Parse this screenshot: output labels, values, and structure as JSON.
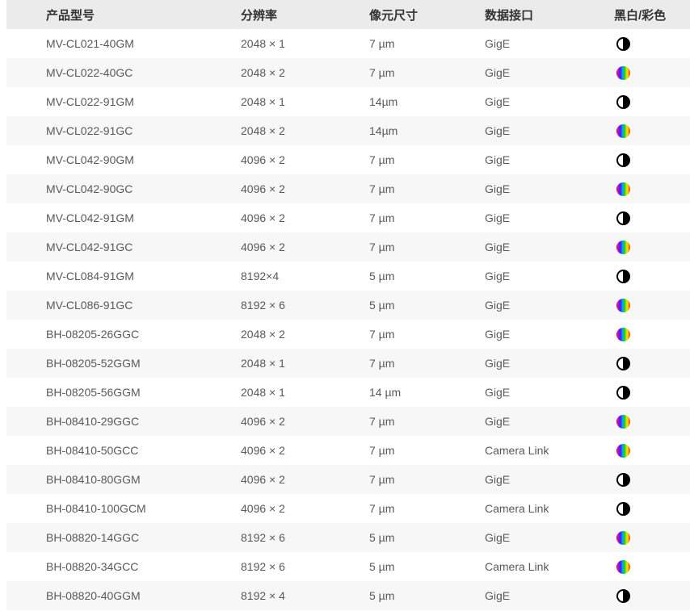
{
  "table": {
    "columns": [
      "产品型号",
      "分辨率",
      "像元尺寸",
      "数据接口",
      "黑白/彩色"
    ],
    "rows": [
      {
        "model": "MV-CL021-40GM",
        "resolution": "2048 × 1",
        "pixel_size": "7 µm",
        "interface": "GigE",
        "type": "mono"
      },
      {
        "model": "MV-CL022-40GC",
        "resolution": "2048 × 2",
        "pixel_size": "7 µm",
        "interface": "GigE",
        "type": "color"
      },
      {
        "model": "MV-CL022-91GM",
        "resolution": "2048 × 1",
        "pixel_size": "14µm",
        "interface": "GigE",
        "type": "mono"
      },
      {
        "model": "MV-CL022-91GC",
        "resolution": "2048 × 2",
        "pixel_size": "14µm",
        "interface": "GigE",
        "type": "color"
      },
      {
        "model": "MV-CL042-90GM",
        "resolution": "4096 × 2",
        "pixel_size": "7 µm",
        "interface": "GigE",
        "type": "mono"
      },
      {
        "model": "MV-CL042-90GC",
        "resolution": "4096 × 2",
        "pixel_size": "7 µm",
        "interface": "GigE",
        "type": "color"
      },
      {
        "model": "MV-CL042-91GM",
        "resolution": "4096 × 2",
        "pixel_size": "7 µm",
        "interface": "GigE",
        "type": "mono"
      },
      {
        "model": "MV-CL042-91GC",
        "resolution": "4096 × 2",
        "pixel_size": "7 µm",
        "interface": "GigE",
        "type": "color"
      },
      {
        "model": "MV-CL084-91GM",
        "resolution": "8192×4",
        "pixel_size": "5 µm",
        "interface": "GigE",
        "type": "mono"
      },
      {
        "model": "MV-CL086-91GC",
        "resolution": "8192 × 6",
        "pixel_size": "5 µm",
        "interface": "GigE",
        "type": "color"
      },
      {
        "model": "BH-08205-26GGC",
        "resolution": "2048 × 2",
        "pixel_size": "7 µm",
        "interface": "GigE",
        "type": "color"
      },
      {
        "model": "BH-08205-52GGM",
        "resolution": "2048 × 1",
        "pixel_size": "7 µm",
        "interface": "GigE",
        "type": "mono"
      },
      {
        "model": "BH-08205-56GGM",
        "resolution": "2048 × 1",
        "pixel_size": "14 µm",
        "interface": "GigE",
        "type": "mono"
      },
      {
        "model": "BH-08410-29GGC",
        "resolution": "4096 × 2",
        "pixel_size": "7 µm",
        "interface": "GigE",
        "type": "color"
      },
      {
        "model": "BH-08410-50GCC",
        "resolution": "4096 × 2",
        "pixel_size": "7 µm",
        "interface": "Camera Link",
        "type": "color"
      },
      {
        "model": "BH-08410-80GGM",
        "resolution": "4096 × 2",
        "pixel_size": "7 µm",
        "interface": "GigE",
        "type": "mono"
      },
      {
        "model": "BH-08410-100GCM",
        "resolution": "4096 × 2",
        "pixel_size": "7 µm",
        "interface": "Camera Link",
        "type": "mono"
      },
      {
        "model": "BH-08820-14GGC",
        "resolution": "8192 × 6",
        "pixel_size": "5 µm",
        "interface": "GigE",
        "type": "color"
      },
      {
        "model": "BH-08820-34GCC",
        "resolution": "8192 × 6",
        "pixel_size": "5 µm",
        "interface": "Camera Link",
        "type": "color"
      },
      {
        "model": "BH-08820-40GGM",
        "resolution": "8192 × 4",
        "pixel_size": "5 µm",
        "interface": "GigE",
        "type": "mono"
      }
    ],
    "icon_legend": {
      "mono": "mono-half-circle-icon",
      "color": "rainbow-circle-icon"
    },
    "colors": {
      "header_bg": "#ebebeb",
      "header_text": "#333333",
      "row_alt_bg": "#f7f7f7",
      "row_text": "#595959"
    }
  }
}
